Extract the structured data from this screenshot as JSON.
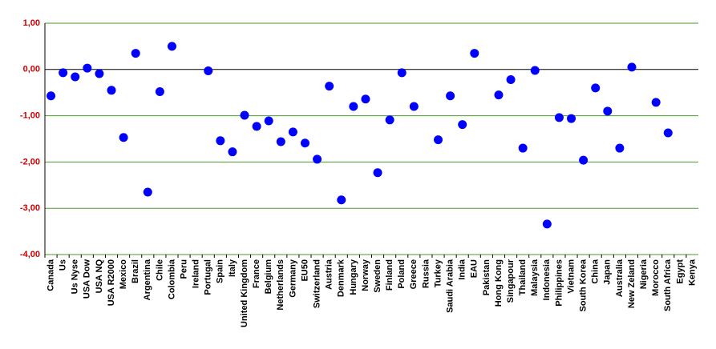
{
  "chart_data": {
    "type": "scatter",
    "categories": [
      "Canada",
      "Us",
      "Us Nyse",
      "USA Dow",
      "USA NQ",
      "USA R2000",
      "Mexico",
      "Brazil",
      "Argentina",
      "Chile",
      "Colombia",
      "Peru",
      "Ireland",
      "Portugal",
      "Spain",
      "Italy",
      "United Kingdom",
      "France",
      "Belgium",
      "Netherlands",
      "Germany",
      "EU50",
      "Switzerland",
      "Austria",
      "Denmark",
      "Hungary",
      "Norway",
      "Sweden",
      "Finland",
      "Poland",
      "Greece",
      "Russia",
      "Turkey",
      "Saudi Arabia",
      "India",
      "EAU",
      "Pakistan",
      "Hong Kong",
      "Singapour",
      "Thailand",
      "Malaysia",
      "Indonesia",
      "Philippines",
      "Vietnam",
      "South Korea",
      "China",
      "Japan",
      "Australia",
      "New Zeland",
      "Nigeria",
      "Morocco",
      "South Africa",
      "Egypt",
      "Kenya"
    ],
    "values": [
      -0.57,
      -0.07,
      -0.16,
      0.03,
      -0.09,
      -0.45,
      -1.47,
      0.35,
      -2.65,
      -0.48,
      0.5,
      null,
      null,
      -0.03,
      -1.54,
      -1.78,
      -0.99,
      -1.23,
      -1.11,
      -1.56,
      -1.35,
      -1.59,
      -1.94,
      -0.36,
      -2.82,
      -0.8,
      -0.64,
      -2.23,
      -1.09,
      -0.07,
      -0.8,
      null,
      -1.52,
      -0.57,
      -1.19,
      0.35,
      null,
      -0.55,
      -0.22,
      -1.7,
      -0.02,
      -3.34,
      -1.04,
      -1.06,
      -1.96,
      -0.4,
      -0.9,
      -1.7,
      0.05,
      null,
      -0.71,
      -1.37,
      null,
      null
    ],
    "color": "#0000ff",
    "ylim": [
      -4,
      1
    ],
    "yticks": [
      {
        "value": -4,
        "label": "-4,00"
      },
      {
        "value": -3,
        "label": "-3,00"
      },
      {
        "value": -2,
        "label": "-2,00"
      },
      {
        "value": -1,
        "label": "-1,00"
      },
      {
        "value": 0,
        "label": "0,00"
      },
      {
        "value": 1,
        "label": "1,00"
      }
    ],
    "grid": true,
    "grid_color": "#4c9a2a",
    "zero_line_color": "#000000",
    "tick_label_color": "#cc0000"
  }
}
